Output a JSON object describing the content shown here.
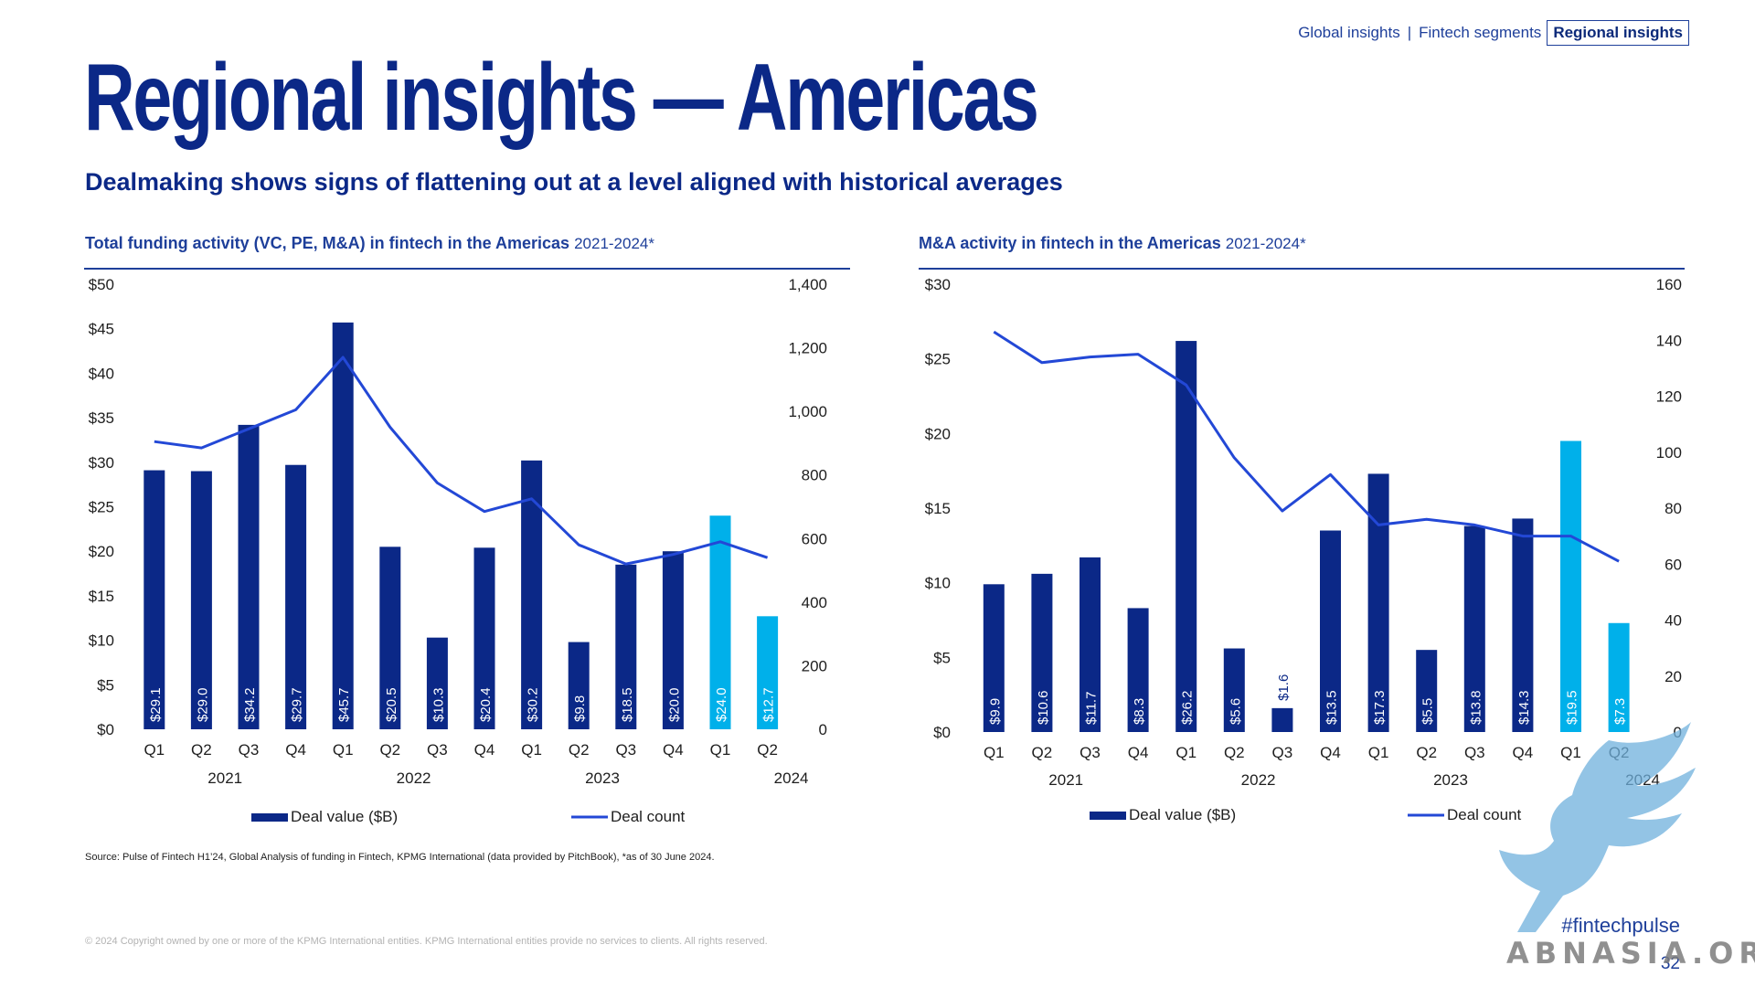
{
  "nav": {
    "items": [
      "Global insights",
      "Fintech segments",
      "Regional insights"
    ],
    "separator": "|",
    "active_index": 2
  },
  "title": "Regional insights — Americas",
  "subtitle": "Dealmaking shows signs of flattening out at a level aligned with historical averages",
  "colors": {
    "bar_dark": "#0b2887",
    "bar_light": "#00b0ea",
    "line": "#2348d6",
    "rule": "#1e3f9a",
    "text": "#1e1e1e"
  },
  "chart_data": [
    {
      "type": "bar",
      "title": "Total funding activity (VC, PE, M&A) in fintech in the Americas",
      "period": "2021-2024*",
      "categories": [
        "Q1",
        "Q2",
        "Q3",
        "Q4",
        "Q1",
        "Q2",
        "Q3",
        "Q4",
        "Q1",
        "Q2",
        "Q3",
        "Q4",
        "Q1",
        "Q2"
      ],
      "years": [
        {
          "label": "2021",
          "start": 0,
          "end": 3
        },
        {
          "label": "2022",
          "start": 4,
          "end": 7
        },
        {
          "label": "2023",
          "start": 8,
          "end": 11
        },
        {
          "label": "2024",
          "start": 13,
          "end": 13
        }
      ],
      "series": [
        {
          "name": "Deal value ($B)",
          "type": "bar",
          "values": [
            29.1,
            29.0,
            34.2,
            29.7,
            45.7,
            20.5,
            10.3,
            20.4,
            30.2,
            9.8,
            18.5,
            20.0,
            24.0,
            12.7
          ],
          "labels": [
            "$29.1",
            "$29.0",
            "$34.2",
            "$29.7",
            "$45.7",
            "$20.5",
            "$10.3",
            "$20.4",
            "$30.2",
            "$9.8",
            "$18.5",
            "$20.0",
            "$24.0",
            "$12.7"
          ],
          "highlight": [
            12,
            13
          ]
        },
        {
          "name": "Deal count",
          "type": "line",
          "axis": "right",
          "values": [
            905,
            885,
            945,
            1005,
            1170,
            950,
            775,
            685,
            725,
            580,
            520,
            550,
            590,
            540
          ]
        }
      ],
      "left_ticks": [
        "$0",
        "$5",
        "$10",
        "$15",
        "$20",
        "$25",
        "$30",
        "$35",
        "$40",
        "$45",
        "$50"
      ],
      "right_ticks": [
        "0",
        "200",
        "400",
        "600",
        "800",
        "1,000",
        "1,200",
        "1,400"
      ],
      "ylim": [
        0,
        50
      ],
      "y2lim": [
        0,
        1400
      ],
      "legend": "bottom"
    },
    {
      "type": "bar",
      "title": "M&A activity in fintech in the Americas",
      "period": "2021-2024*",
      "categories": [
        "Q1",
        "Q2",
        "Q3",
        "Q4",
        "Q1",
        "Q2",
        "Q3",
        "Q4",
        "Q1",
        "Q2",
        "Q3",
        "Q4",
        "Q1",
        "Q2"
      ],
      "years": [
        {
          "label": "2021",
          "start": 0,
          "end": 3
        },
        {
          "label": "2022",
          "start": 4,
          "end": 7
        },
        {
          "label": "2023",
          "start": 8,
          "end": 11
        },
        {
          "label": "2024",
          "start": 13,
          "end": 13
        }
      ],
      "series": [
        {
          "name": "Deal value ($B)",
          "type": "bar",
          "values": [
            9.9,
            10.6,
            11.7,
            8.3,
            26.2,
            5.6,
            1.6,
            13.5,
            17.3,
            5.5,
            13.8,
            14.3,
            19.5,
            7.3
          ],
          "labels": [
            "$9.9",
            "$10.6",
            "$11.7",
            "$8.3",
            "$26.2",
            "$5.6",
            "$1.6",
            "$13.5",
            "$17.3",
            "$5.5",
            "$13.8",
            "$14.3",
            "$19.5",
            "$7.3"
          ],
          "highlight": [
            12,
            13
          ]
        },
        {
          "name": "Deal count",
          "type": "line",
          "axis": "right",
          "values": [
            143,
            132,
            134,
            135,
            124,
            98,
            79,
            92,
            74,
            76,
            74,
            70,
            70,
            61
          ]
        }
      ],
      "left_ticks": [
        "$0",
        "$5",
        "$10",
        "$15",
        "$20",
        "$25",
        "$30"
      ],
      "right_ticks": [
        "0",
        "20",
        "40",
        "60",
        "80",
        "100",
        "120",
        "140",
        "160"
      ],
      "ylim": [
        0,
        30
      ],
      "y2lim": [
        0,
        160
      ],
      "legend": "bottom"
    }
  ],
  "footer": {
    "source": "Source: Pulse of Fintech H1’24, Global Analysis of funding in Fintech, KPMG International (data provided by PitchBook), *as of 30 June 2024.",
    "copyright": "© 2024 Copyright owned by one or more of the KPMG International entities. KPMG International entities provide no services to clients. All rights reserved.",
    "hashtag": "#fintechpulse",
    "page_number": "32"
  },
  "watermark": {
    "text": "ABNASIA.ORG",
    "icon": "griffin-logo-icon"
  }
}
